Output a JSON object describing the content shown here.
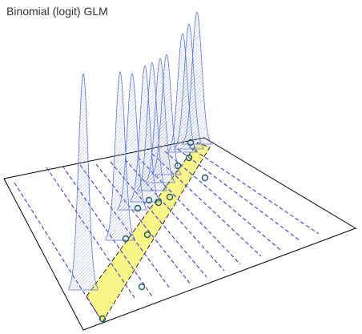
{
  "title": "Binomial (logit) GLM",
  "colors": {
    "plane_border": "#000000",
    "guide_line": "#000000",
    "dash_line": "#2a2ad4",
    "curve_stroke": "#5b76d6",
    "curve_fill": "#b7c7ec",
    "band_fill": "#f7f060",
    "point_stroke": "#1f5a66"
  },
  "chart_data": {
    "type": "diagram",
    "description_points": 11
  }
}
